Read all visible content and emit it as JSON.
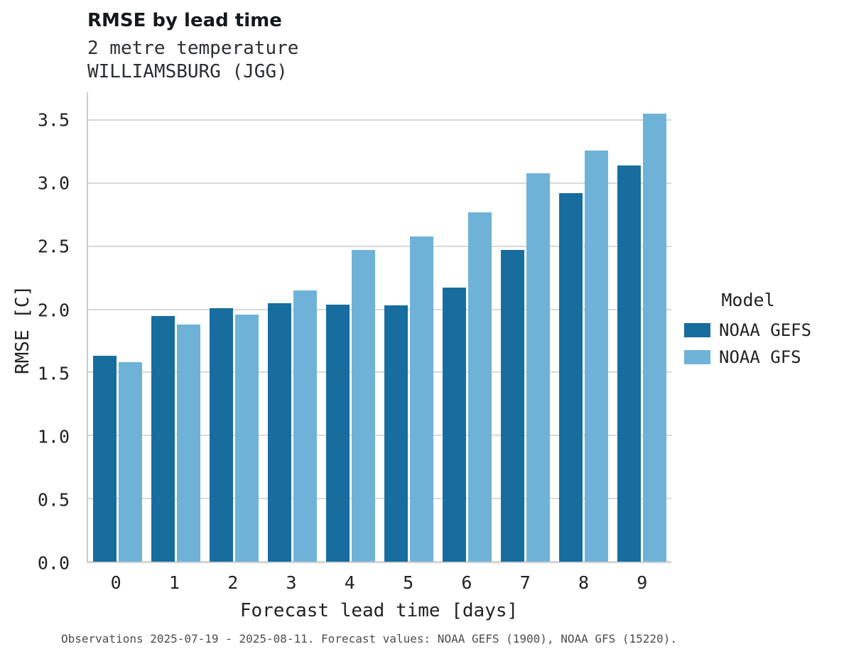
{
  "header": {
    "title": "RMSE by lead time",
    "subtitle1": "2 metre temperature",
    "subtitle2": "WILLIAMSBURG (JGG)"
  },
  "legend": {
    "title": "Model",
    "entries": [
      {
        "label": "NOAA GEFS",
        "color": "#176d9e"
      },
      {
        "label": "NOAA GFS",
        "color": "#6fb2d8"
      }
    ]
  },
  "caption": "Observations 2025-07-19 - 2025-08-11. Forecast values: NOAA GEFS (1900), NOAA GFS (15220).",
  "chart_data": {
    "type": "bar",
    "title": "RMSE by lead time",
    "subtitle": [
      "2 metre temperature",
      "WILLIAMSBURG (JGG)"
    ],
    "xlabel": "Forecast lead time [days]",
    "ylabel": "RMSE [C]",
    "categories": [
      0,
      1,
      2,
      3,
      4,
      5,
      6,
      7,
      8,
      9
    ],
    "series": [
      {
        "name": "NOAA GEFS",
        "color": "#176d9e",
        "values": [
          1.63,
          1.95,
          2.01,
          2.05,
          2.04,
          2.03,
          2.17,
          2.47,
          2.92,
          3.14
        ]
      },
      {
        "name": "NOAA GFS",
        "color": "#6fb2d8",
        "values": [
          1.58,
          1.88,
          1.96,
          2.15,
          2.47,
          2.58,
          2.77,
          3.08,
          3.26,
          3.55
        ]
      }
    ],
    "yticks": [
      0.0,
      0.5,
      1.0,
      1.5,
      2.0,
      2.5,
      3.0,
      3.5
    ],
    "ytick_labels": [
      "0.0",
      "0.5",
      "1.0",
      "1.5",
      "2.0",
      "2.5",
      "3.0",
      "3.5"
    ],
    "ylim": [
      0,
      3.72
    ],
    "grid": true,
    "legend_position": "right",
    "grid_color": "#d9d9d9",
    "axis_color": "#cccccc"
  }
}
